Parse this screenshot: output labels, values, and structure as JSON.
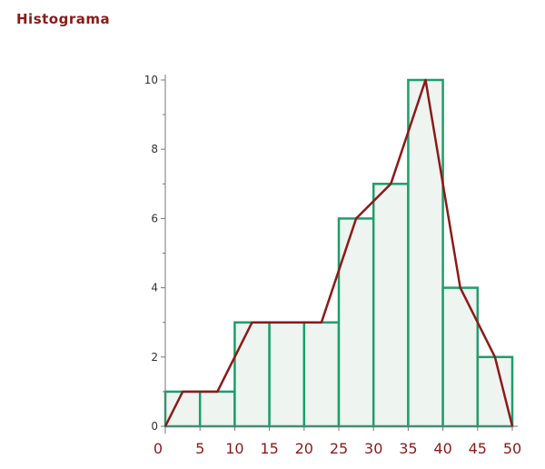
{
  "chart_data": {
    "type": "bar",
    "title": "Histograma",
    "xlabel": "",
    "ylabel": "",
    "bin_edges": [
      0,
      5,
      10,
      15,
      20,
      25,
      30,
      35,
      40,
      45,
      50
    ],
    "values": [
      1,
      1,
      3,
      3,
      3,
      6,
      7,
      10,
      4,
      2
    ],
    "polygon": {
      "x": [
        0,
        2.5,
        7.5,
        12.5,
        17.5,
        22.5,
        27.5,
        32.5,
        37.5,
        42.5,
        47.5,
        50
      ],
      "y": [
        0,
        1,
        1,
        3,
        3,
        3,
        6,
        7,
        10,
        4,
        2,
        0
      ]
    },
    "xlim": [
      0,
      50
    ],
    "ylim": [
      0,
      10
    ],
    "x_ticks": [
      0,
      5,
      10,
      15,
      20,
      25,
      30,
      35,
      40,
      45,
      50
    ],
    "y_ticks": [
      0,
      2,
      4,
      6,
      8,
      10
    ],
    "grid": false,
    "legend": "none"
  },
  "colors": {
    "title": "#8b1a1a",
    "bar_fill": "#eef4f0",
    "bar_stroke": "#1e9e6a",
    "polygon": "#8b1a1a",
    "axis": "#777777",
    "x_tick_label": "#8b1a1a",
    "y_tick_label": "#333333"
  }
}
